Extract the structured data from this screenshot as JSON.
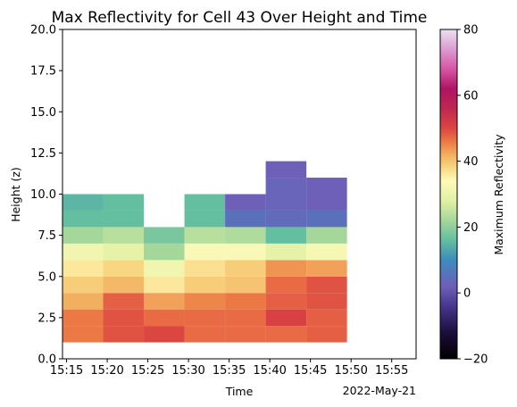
{
  "chart_data": {
    "type": "heatmap",
    "title": "Max Reflectivity for Cell 43 Over Height and Time",
    "xlabel": "Time",
    "ylabel": "Height (z)",
    "x_offset_label": "2022-May-21",
    "colorbar_label": "Maximum Reflectivity",
    "colormap": "Spectral_r",
    "vlim": [
      -20,
      80
    ],
    "ylim": [
      0,
      20
    ],
    "xlim": [
      "15:14.5",
      "15:58"
    ],
    "grid": false,
    "x_ticks": [
      "15:15",
      "15:20",
      "15:25",
      "15:30",
      "15:35",
      "15:40",
      "15:45",
      "15:50",
      "15:55"
    ],
    "y_ticks": [
      "0.0",
      "2.5",
      "5.0",
      "7.5",
      "10.0",
      "12.5",
      "15.0",
      "17.5",
      "20.0"
    ],
    "colorbar_ticks": [
      "−20",
      "0",
      "20",
      "40",
      "60",
      "80"
    ],
    "time_bins": [
      {
        "start": "15:14.5",
        "end": "15:19.5"
      },
      {
        "start": "15:19.5",
        "end": "15:24.5"
      },
      {
        "start": "15:24.5",
        "end": "15:29.5"
      },
      {
        "start": "15:29.5",
        "end": "15:34.5"
      },
      {
        "start": "15:34.5",
        "end": "15:39.5"
      },
      {
        "start": "15:39.5",
        "end": "15:44.5"
      },
      {
        "start": "15:44.5",
        "end": "15:49.5"
      }
    ],
    "height_bins": [
      1,
      2,
      3,
      4,
      5,
      6,
      7,
      8,
      9,
      10,
      11,
      12
    ],
    "values": [
      [
        46,
        46,
        42,
        39,
        36,
        31,
        22,
        16,
        15
      ],
      [
        49,
        49,
        48,
        41,
        38,
        29,
        24,
        16,
        16
      ],
      [
        50,
        47,
        43,
        36,
        31,
        22,
        18
      ],
      [
        47,
        47,
        45,
        39,
        37,
        33,
        24,
        16,
        16
      ],
      [
        47,
        47,
        46,
        40,
        39,
        33,
        23,
        5,
        2
      ],
      [
        47,
        51,
        48,
        47,
        44,
        29,
        16,
        4,
        3,
        3,
        2
      ],
      [
        48,
        48,
        49,
        49,
        43,
        32,
        22,
        5,
        2,
        2
      ]
    ]
  }
}
